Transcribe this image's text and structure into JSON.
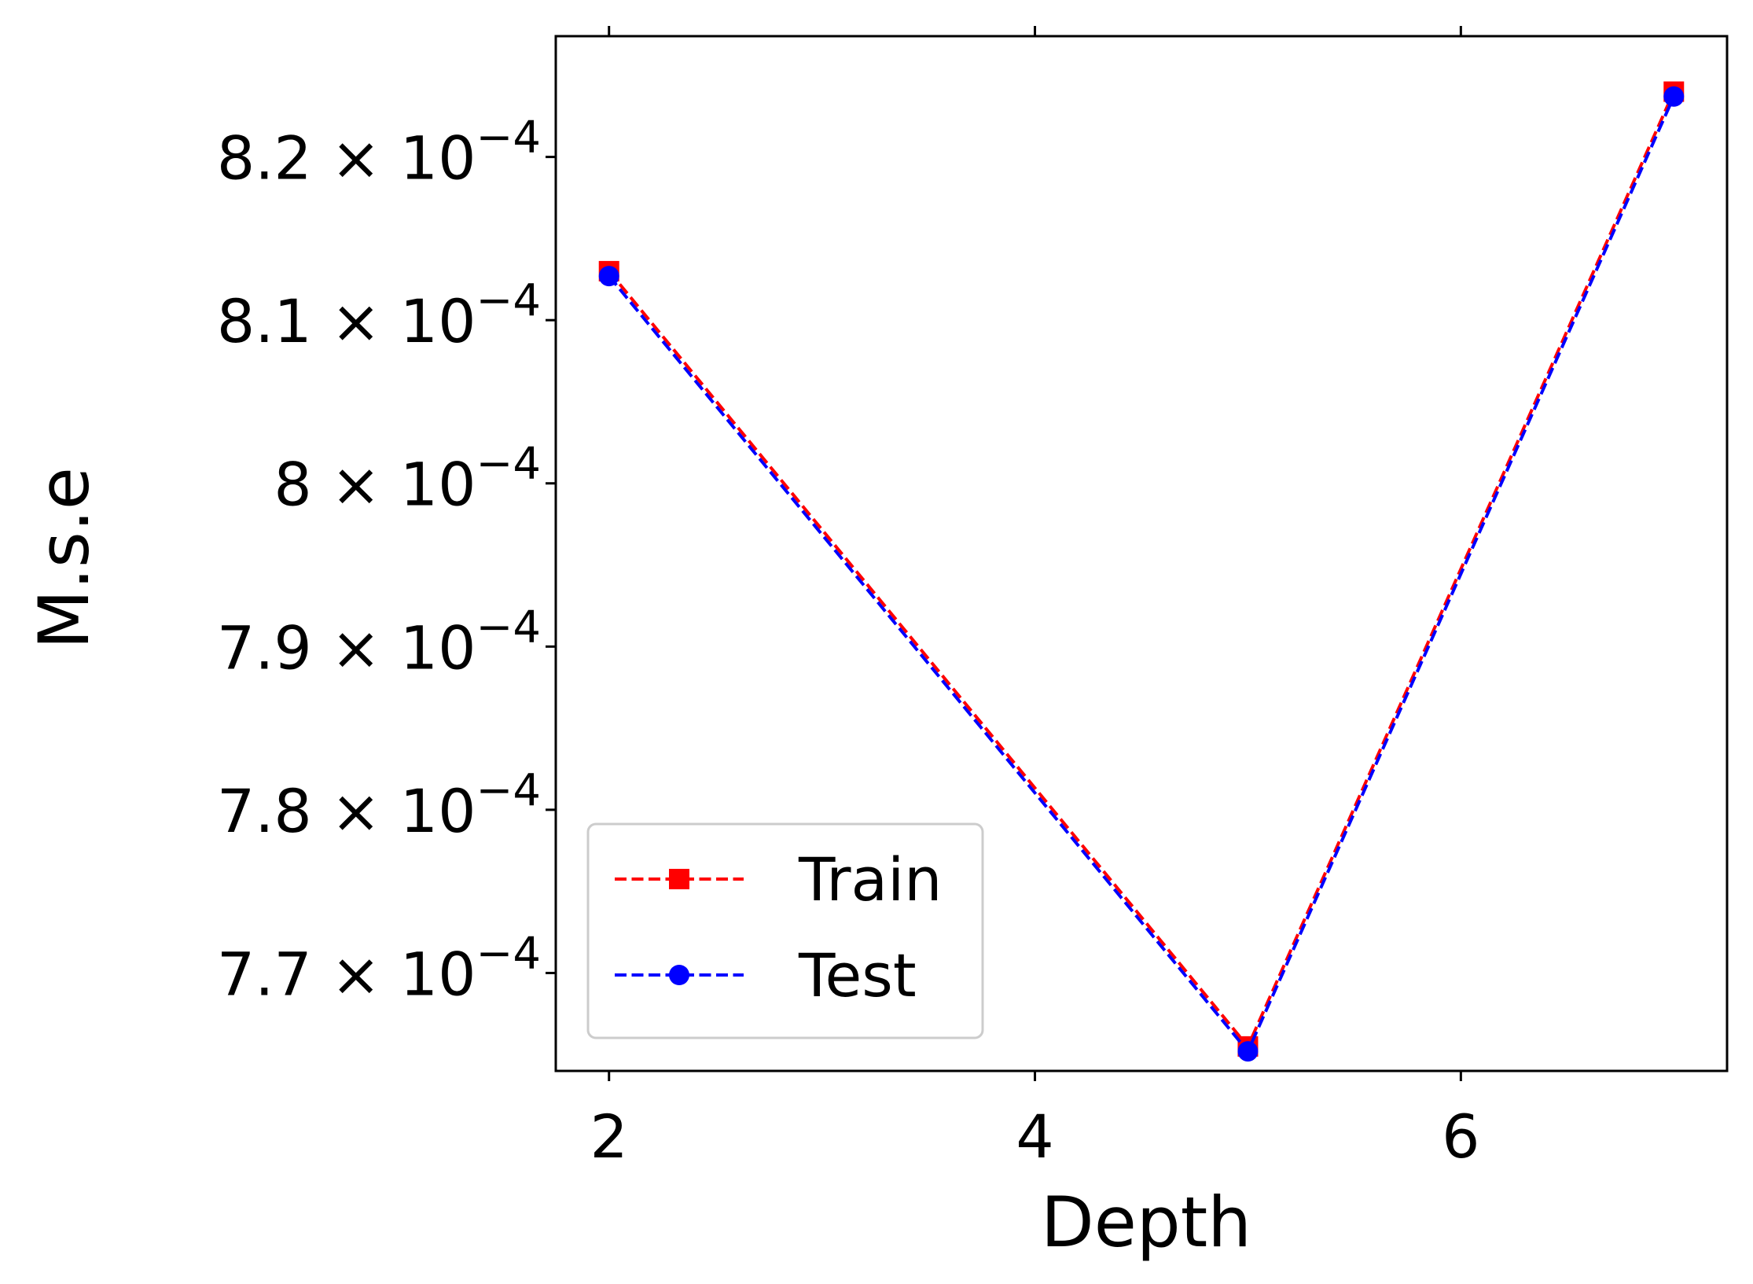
{
  "chart_data": {
    "type": "line",
    "title": "",
    "xlabel": "Depth",
    "ylabel": "M.s.e",
    "x": [
      2,
      5,
      7
    ],
    "xlim": [
      1.75,
      7.25
    ],
    "ylim": [
      0.000764,
      0.0008274
    ],
    "xticks": [
      2,
      4,
      6
    ],
    "xtick_labels": [
      "2",
      "4",
      "6"
    ],
    "yticks": [
      0.00077,
      0.00078,
      0.00079,
      0.0008,
      0.00081,
      0.00082
    ],
    "ytick_labels": [
      {
        "mantissa": "7.7",
        "times": "×",
        "base": "10",
        "exponent": "−4"
      },
      {
        "mantissa": "7.8",
        "times": "×",
        "base": "10",
        "exponent": "−4"
      },
      {
        "mantissa": "7.9",
        "times": "×",
        "base": "10",
        "exponent": "−4"
      },
      {
        "mantissa": "8",
        "times": "×",
        "base": "10",
        "exponent": "−4"
      },
      {
        "mantissa": "8.1",
        "times": "×",
        "base": "10",
        "exponent": "−4"
      },
      {
        "mantissa": "8.2",
        "times": "×",
        "base": "10",
        "exponent": "−4"
      }
    ],
    "series": [
      {
        "name": "Train",
        "color": "#ff0000",
        "marker": "square",
        "linestyle": "dashed",
        "values": [
          0.000813,
          0.0007655,
          0.000824
        ]
      },
      {
        "name": "Test",
        "color": "#0000ff",
        "marker": "circle",
        "linestyle": "dashed",
        "values": [
          0.0008127,
          0.0007652,
          0.0008237
        ]
      }
    ],
    "grid": false,
    "legend_position": "lower-left"
  }
}
